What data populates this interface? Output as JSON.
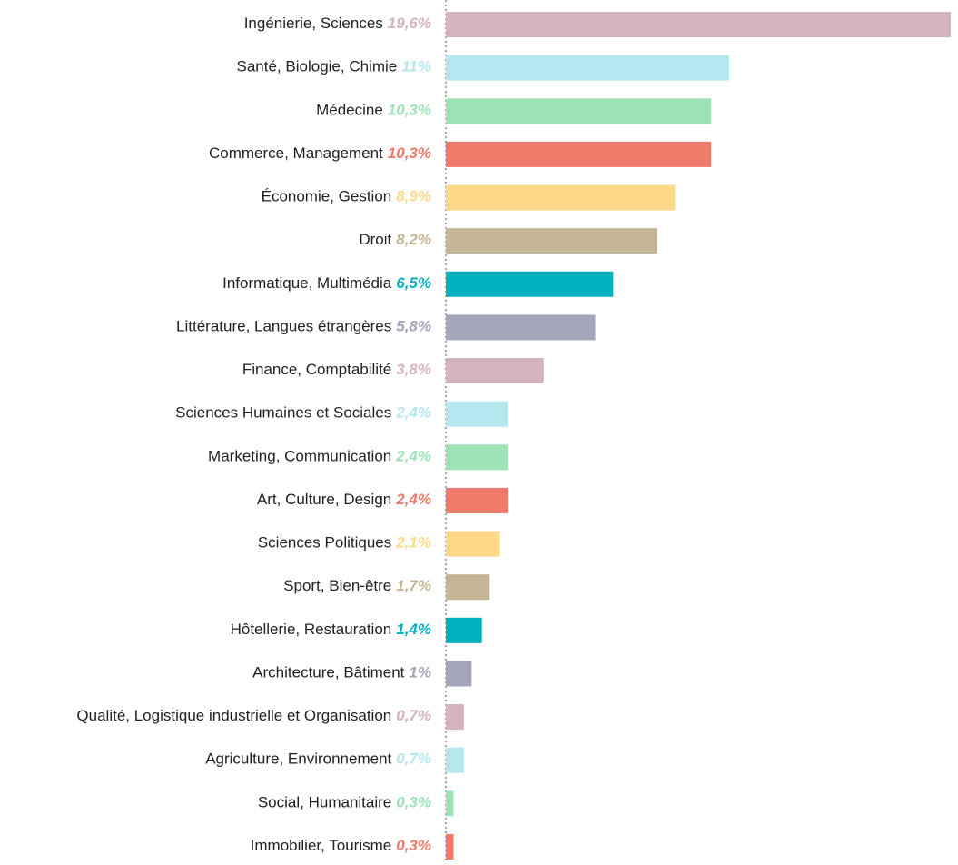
{
  "chart_data": {
    "type": "bar",
    "orientation": "horizontal",
    "categories": [
      "Ingénierie, Sciences",
      "Santé, Biologie, Chimie",
      "Médecine",
      "Commerce, Management",
      "Économie, Gestion",
      "Droit",
      "Informatique, Multimédia",
      "Littérature, Langues étrangères",
      "Finance, Comptabilité",
      "Sciences Humaines et Sociales",
      "Marketing, Communication",
      "Art, Culture, Design",
      "Sciences Politiques",
      "Sport, Bien-être",
      "Hôtellerie, Restauration",
      "Architecture, Bâtiment",
      "Qualité, Logistique industrielle et Organisation",
      "Agriculture, Environnement",
      "Social, Humanitaire",
      "Immobilier, Tourisme"
    ],
    "values": [
      19.6,
      11,
      10.3,
      10.3,
      8.9,
      8.2,
      6.5,
      5.8,
      3.8,
      2.4,
      2.4,
      2.4,
      2.1,
      1.7,
      1.4,
      1,
      0.7,
      0.7,
      0.3,
      0.3
    ],
    "value_labels": [
      "19,6%",
      "11%",
      "10,3%",
      "10,3%",
      "8,9%",
      "8,2%",
      "6,5%",
      "5,8%",
      "3,8%",
      "2,4%",
      "2,4%",
      "2,4%",
      "2,1%",
      "1,7%",
      "1,4%",
      "1%",
      "0,7%",
      "0,7%",
      "0,3%",
      "0,3%"
    ],
    "colors": [
      "#d4b3bc",
      "#b5e8ee",
      "#9de3b7",
      "#f07a6a",
      "#ffd98a",
      "#c4b594",
      "#00b2bd",
      "#a3a5b8",
      "#d4b3bc",
      "#b5e8ee",
      "#9de3b7",
      "#f07a6a",
      "#ffd98a",
      "#c4b594",
      "#00b2bd",
      "#a3a5b8",
      "#d4b3bc",
      "#b5e8ee",
      "#9de3b7",
      "#f07a6a"
    ]
  }
}
